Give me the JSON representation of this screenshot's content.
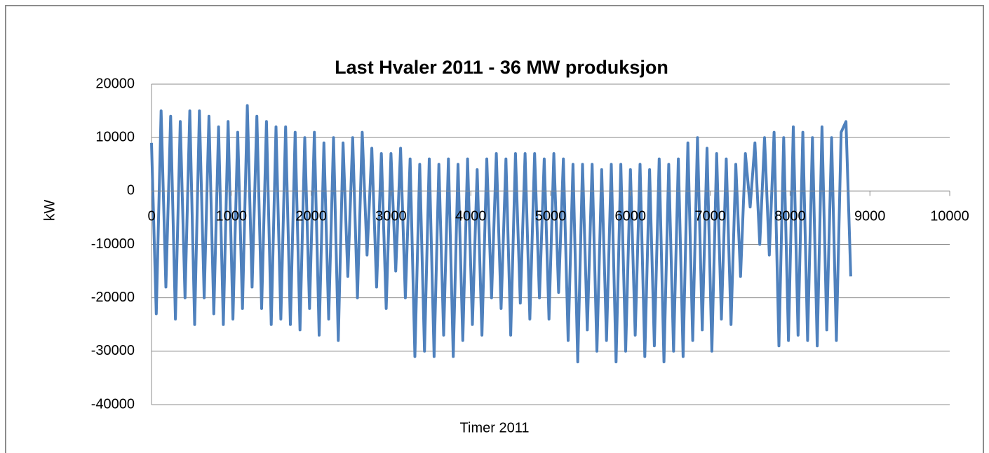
{
  "chart_data": {
    "type": "line",
    "title": "Last Hvaler  2011 - 36 MW produksjon",
    "x_label": "Timer 2011",
    "y_label": "kW",
    "xlim": [
      0,
      10000
    ],
    "xticks": [
      0,
      1000,
      2000,
      3000,
      4000,
      5000,
      6000,
      7000,
      8000,
      9000,
      10000
    ],
    "ylim": [
      -40000,
      20000
    ],
    "yticks": [
      -40000,
      -30000,
      -20000,
      -10000,
      0,
      10000,
      20000
    ],
    "grid": true,
    "x": [
      0,
      60,
      120,
      180,
      240,
      300,
      360,
      420,
      480,
      540,
      600,
      660,
      720,
      780,
      840,
      900,
      960,
      1020,
      1080,
      1140,
      1200,
      1260,
      1320,
      1380,
      1440,
      1500,
      1560,
      1620,
      1680,
      1740,
      1800,
      1860,
      1920,
      1980,
      2040,
      2100,
      2160,
      2220,
      2280,
      2340,
      2400,
      2460,
      2520,
      2580,
      2640,
      2700,
      2760,
      2820,
      2880,
      2940,
      3000,
      3060,
      3120,
      3180,
      3240,
      3300,
      3360,
      3420,
      3480,
      3540,
      3600,
      3660,
      3720,
      3780,
      3840,
      3900,
      3960,
      4020,
      4080,
      4140,
      4200,
      4260,
      4320,
      4380,
      4440,
      4500,
      4560,
      4620,
      4680,
      4740,
      4800,
      4860,
      4920,
      4980,
      5040,
      5100,
      5160,
      5220,
      5280,
      5340,
      5400,
      5460,
      5520,
      5580,
      5640,
      5700,
      5760,
      5820,
      5880,
      5940,
      6000,
      6060,
      6120,
      6180,
      6240,
      6300,
      6360,
      6420,
      6480,
      6540,
      6600,
      6660,
      6720,
      6780,
      6840,
      6900,
      6960,
      7020,
      7080,
      7140,
      7200,
      7260,
      7320,
      7380,
      7440,
      7500,
      7560,
      7620,
      7680,
      7740,
      7800,
      7860,
      7920,
      7980,
      8040,
      8100,
      8160,
      8220,
      8280,
      8340,
      8400,
      8460,
      8520,
      8580,
      8640,
      8700,
      8760
    ],
    "series": [
      {
        "name": "kW",
        "color": "#4f81bd",
        "values": [
          9000,
          -23000,
          15000,
          -18000,
          14000,
          -24000,
          13000,
          -20000,
          15000,
          -25000,
          15000,
          -20000,
          14000,
          -23000,
          12000,
          -25000,
          13000,
          -24000,
          11000,
          -22000,
          16000,
          -18000,
          14000,
          -22000,
          13000,
          -25000,
          12000,
          -24000,
          12000,
          -25000,
          11000,
          -26000,
          10000,
          -22000,
          11000,
          -27000,
          9000,
          -24000,
          10000,
          -28000,
          9000,
          -16000,
          10000,
          -20000,
          11000,
          -12000,
          8000,
          -18000,
          7000,
          -22000,
          7000,
          -15000,
          8000,
          -20000,
          6000,
          -31000,
          5000,
          -30000,
          6000,
          -31000,
          5000,
          -27000,
          6000,
          -31000,
          5000,
          -28000,
          6000,
          -25000,
          4000,
          -27000,
          6000,
          -20000,
          7000,
          -22000,
          6000,
          -27000,
          7000,
          -21000,
          7000,
          -24000,
          7000,
          -20000,
          6000,
          -24000,
          7000,
          -19000,
          6000,
          -28000,
          5000,
          -32000,
          5000,
          -26000,
          5000,
          -30000,
          4000,
          -28000,
          5000,
          -32000,
          5000,
          -30000,
          4000,
          -27000,
          5000,
          -31000,
          4000,
          -29000,
          6000,
          -32000,
          5000,
          -30000,
          6000,
          -31000,
          9000,
          -28000,
          10000,
          -26000,
          8000,
          -30000,
          7000,
          -24000,
          6000,
          -25000,
          5000,
          -16000,
          7000,
          -3000,
          9000,
          -10000,
          10000,
          -12000,
          11000,
          -29000,
          10000,
          -28000,
          12000,
          -27000,
          11000,
          -28000,
          10000,
          -29000,
          12000,
          -26000,
          10000,
          -28000,
          11000,
          13000,
          -16000
        ]
      }
    ]
  }
}
